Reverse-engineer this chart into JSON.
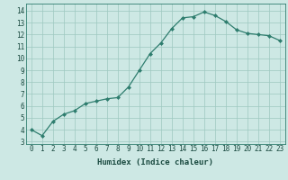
{
  "x": [
    0,
    1,
    2,
    3,
    4,
    5,
    6,
    7,
    8,
    9,
    10,
    11,
    12,
    13,
    14,
    15,
    16,
    17,
    18,
    19,
    20,
    21,
    22,
    23
  ],
  "y": [
    4.0,
    3.5,
    4.7,
    5.3,
    5.6,
    6.2,
    6.4,
    6.6,
    6.7,
    7.6,
    9.0,
    10.4,
    11.3,
    12.5,
    13.4,
    13.5,
    13.9,
    13.6,
    13.1,
    12.4,
    12.1,
    12.0,
    11.9,
    11.5
  ],
  "line_color": "#2e7d6e",
  "marker": "D",
  "marker_size": 2,
  "bg_color": "#cde8e4",
  "grid_color": "#9dc8c0",
  "xlabel": "Humidex (Indice chaleur)",
  "xlim": [
    -0.5,
    23.5
  ],
  "ylim": [
    2.8,
    14.6
  ],
  "yticks": [
    3,
    4,
    5,
    6,
    7,
    8,
    9,
    10,
    11,
    12,
    13,
    14
  ],
  "xtick_labels": [
    "0",
    "1",
    "2",
    "3",
    "4",
    "5",
    "6",
    "7",
    "8",
    "9",
    "10",
    "11",
    "12",
    "13",
    "14",
    "15",
    "16",
    "17",
    "18",
    "19",
    "20",
    "21",
    "22",
    "23"
  ],
  "font_color": "#1a4a40",
  "tick_fontsize": 5.5,
  "xlabel_fontsize": 6.5
}
